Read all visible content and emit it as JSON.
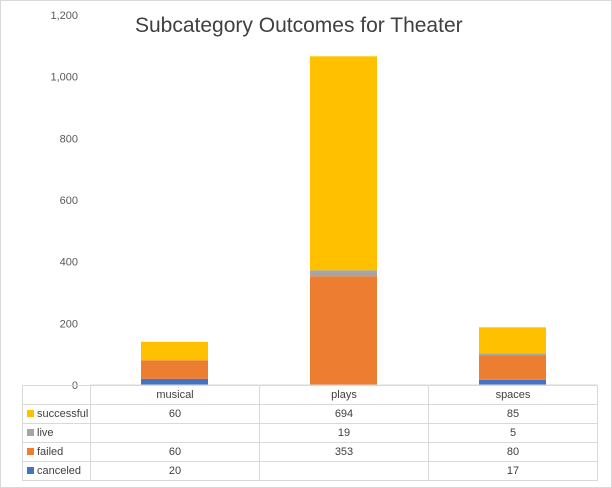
{
  "chart_data": {
    "type": "bar",
    "stacked": true,
    "title": "Subcategory Outcomes for Theater",
    "categories": [
      "musical",
      "plays",
      "spaces"
    ],
    "series": [
      {
        "name": "canceled",
        "color": "#4472C4",
        "values": [
          20,
          null,
          17
        ]
      },
      {
        "name": "failed",
        "color": "#ED7D31",
        "values": [
          60,
          353,
          80
        ]
      },
      {
        "name": "live",
        "color": "#A5A5A5",
        "values": [
          null,
          19,
          5
        ]
      },
      {
        "name": "successful",
        "color": "#FFC000",
        "values": [
          60,
          694,
          85
        ]
      }
    ],
    "table_row_order": [
      "successful",
      "live",
      "failed",
      "canceled"
    ],
    "ylim": [
      0,
      1200
    ],
    "yticks": [
      0,
      200,
      400,
      600,
      800,
      1000,
      1200
    ],
    "ytick_labels": [
      "0",
      "200",
      "400",
      "600",
      "800",
      "1,000",
      "1,200"
    ],
    "grid": false,
    "legend": "data-table"
  }
}
